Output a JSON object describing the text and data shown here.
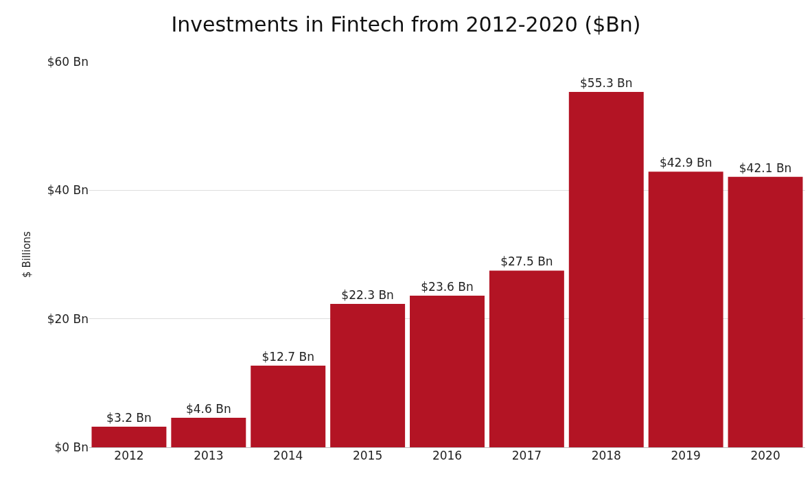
{
  "chart_data": {
    "type": "bar",
    "title": "Investments in Fintech from 2012-2020 ($Bn)",
    "ylabel": "$ Billions",
    "categories": [
      "2012",
      "2013",
      "2014",
      "2015",
      "2016",
      "2017",
      "2018",
      "2019",
      "2020"
    ],
    "values": [
      3.2,
      4.6,
      12.7,
      22.3,
      23.6,
      27.5,
      55.3,
      42.9,
      42.1
    ],
    "value_labels": [
      "$3.2 Bn",
      "$4.6 Bn",
      "$12.7 Bn",
      "$22.3 Bn",
      "$23.6 Bn",
      "$27.5 Bn",
      "$55.3 Bn",
      "$42.9 Bn",
      "$42.1 Bn"
    ],
    "color": "#b31424",
    "ylim": [
      0,
      60
    ],
    "yticks": [
      {
        "value": 0,
        "label": "$0 Bn"
      },
      {
        "value": 20,
        "label": "$20 Bn"
      },
      {
        "value": 40,
        "label": "$40 Bn"
      },
      {
        "value": 60,
        "label": "$60 Bn"
      }
    ],
    "grid": "y",
    "legend": false
  }
}
